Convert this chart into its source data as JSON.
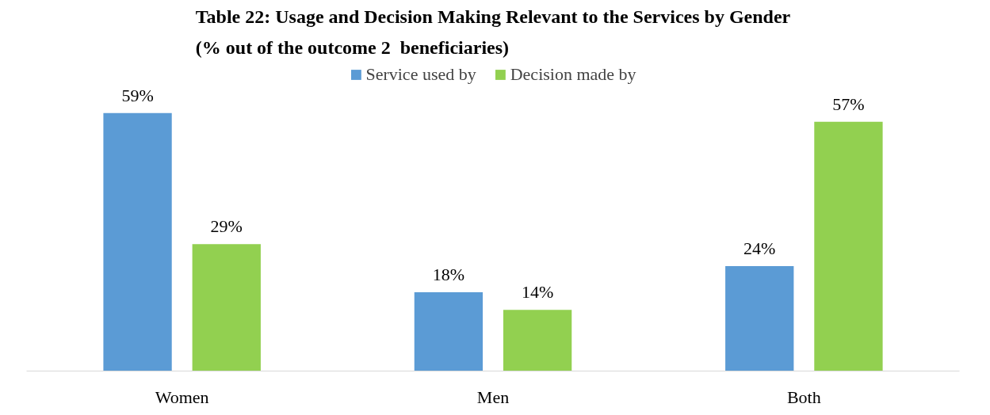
{
  "chart_data": {
    "type": "bar",
    "title": "Table 22: Usage and Decision Making Relevant to the Services by Gender\n(% out of the outcome 2  beneficiaries)",
    "categories": [
      "Women",
      "Men",
      "Both"
    ],
    "series": [
      {
        "name": "Service used by",
        "color": "#5b9bd5",
        "values": [
          59,
          18,
          24
        ],
        "value_labels": [
          "59%",
          "18%",
          "24%"
        ]
      },
      {
        "name": "Decision made by",
        "color": "#92d050",
        "values": [
          29,
          14,
          57
        ],
        "value_labels": [
          "29%",
          "14%",
          "57%"
        ]
      }
    ],
    "legend": "top",
    "tick_labels": "x"
  }
}
